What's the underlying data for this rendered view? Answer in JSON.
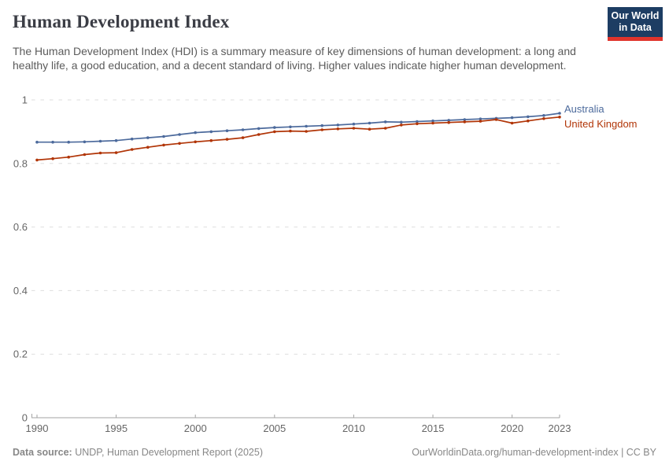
{
  "header": {
    "title": "Human Development Index",
    "subtitle": "The Human Development Index (HDI) is a summary measure of key dimensions of human development: a long and healthy life, a good education, and a decent standard of living. Higher values indicate higher human development.",
    "logo": {
      "line1": "Our World",
      "line2": "in Data",
      "bg_color": "#1d3d63",
      "bar_color": "#e0342c"
    }
  },
  "chart_data": {
    "type": "line",
    "title": "Human Development Index",
    "xlabel": "",
    "ylabel": "",
    "xlim": [
      1990,
      2023
    ],
    "ylim": [
      0,
      1
    ],
    "x_ticks": [
      1990,
      1995,
      2000,
      2005,
      2010,
      2015,
      2020,
      2023
    ],
    "y_ticks": [
      0,
      0.2,
      0.4,
      0.6,
      0.8,
      1
    ],
    "grid": "horizontal-dashed",
    "legend_position": "right-of-line-ends",
    "x": [
      1990,
      1991,
      1992,
      1993,
      1994,
      1995,
      1996,
      1997,
      1998,
      1999,
      2000,
      2001,
      2002,
      2003,
      2004,
      2005,
      2006,
      2007,
      2008,
      2009,
      2010,
      2011,
      2012,
      2013,
      2014,
      2015,
      2016,
      2017,
      2018,
      2019,
      2020,
      2021,
      2022,
      2023
    ],
    "series": [
      {
        "name": "Australia",
        "color": "#4C6A9C",
        "values": [
          0.867,
          0.867,
          0.867,
          0.868,
          0.87,
          0.872,
          0.877,
          0.881,
          0.885,
          0.891,
          0.897,
          0.9,
          0.903,
          0.906,
          0.91,
          0.913,
          0.915,
          0.917,
          0.919,
          0.921,
          0.924,
          0.927,
          0.931,
          0.93,
          0.932,
          0.934,
          0.936,
          0.938,
          0.94,
          0.942,
          0.944,
          0.947,
          0.951,
          0.958
        ]
      },
      {
        "name": "United Kingdom",
        "color": "#B13507",
        "values": [
          0.811,
          0.815,
          0.82,
          0.828,
          0.833,
          0.834,
          0.844,
          0.851,
          0.858,
          0.863,
          0.868,
          0.872,
          0.876,
          0.881,
          0.891,
          0.9,
          0.902,
          0.901,
          0.906,
          0.909,
          0.911,
          0.908,
          0.911,
          0.921,
          0.925,
          0.927,
          0.929,
          0.931,
          0.933,
          0.938,
          0.927,
          0.934,
          0.941,
          0.946
        ]
      }
    ],
    "style": {
      "grid_color": "#dddddd",
      "axis_color": "#a3a3a3",
      "tick_label_color": "#666666"
    }
  },
  "footer": {
    "source_label": "Data source:",
    "source_value": " UNDP, Human Development Report (2025)",
    "credit": "OurWorldinData.org/human-development-index | CC BY"
  }
}
